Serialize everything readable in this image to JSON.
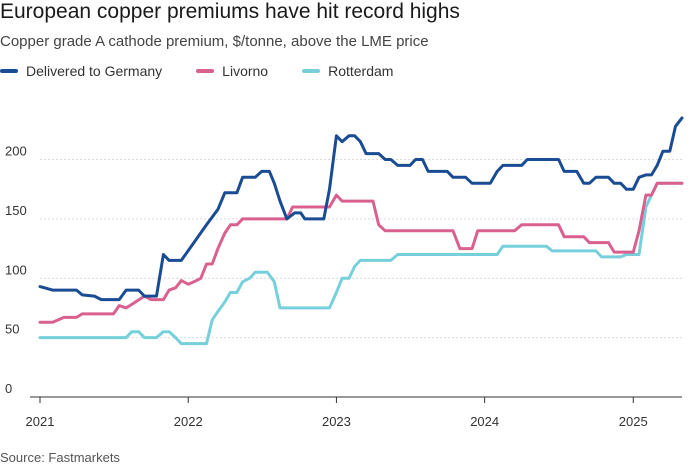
{
  "title": "European copper premiums have hit record highs",
  "subtitle": "Copper grade A cathode premium, $/tonne, above the LME price",
  "source": "Source: Fastmarkets",
  "colors": {
    "Delivered to Germany": "#1a4c93",
    "Livorno": "#d9608f",
    "Rotterdam": "#76d0dc",
    "grid": "#d7d9de",
    "axis": "#333333"
  },
  "chart_data": {
    "type": "line",
    "title": "European copper premiums have hit record highs",
    "subtitle": "Copper grade A cathode premium, $/tonne, above the LME price",
    "ylim": [
      0,
      240
    ],
    "yticks": [
      0,
      50,
      100,
      150,
      200
    ],
    "xlim": [
      "2021-01-01",
      "2025-05-01"
    ],
    "xticks": [
      "2021",
      "2022",
      "2023",
      "2024",
      "2025"
    ],
    "grid": true,
    "legend_position": "top-left",
    "series": [
      {
        "name": "Delivered to Germany",
        "points": [
          [
            "2021-01-01",
            93
          ],
          [
            "2021-02-01",
            90
          ],
          [
            "2021-04-01",
            90
          ],
          [
            "2021-04-15",
            86
          ],
          [
            "2021-05-15",
            85
          ],
          [
            "2021-06-01",
            82
          ],
          [
            "2021-07-15",
            82
          ],
          [
            "2021-08-01",
            90
          ],
          [
            "2021-09-01",
            90
          ],
          [
            "2021-09-15",
            85
          ],
          [
            "2021-10-15",
            85
          ],
          [
            "2021-11-01",
            120
          ],
          [
            "2021-11-15",
            115
          ],
          [
            "2021-12-15",
            115
          ],
          [
            "2022-01-15",
            130
          ],
          [
            "2022-02-15",
            145
          ],
          [
            "2022-03-15",
            158
          ],
          [
            "2022-04-01",
            172
          ],
          [
            "2022-05-01",
            172
          ],
          [
            "2022-05-15",
            185
          ],
          [
            "2022-06-15",
            185
          ],
          [
            "2022-07-01",
            190
          ],
          [
            "2022-07-20",
            190
          ],
          [
            "2022-08-01",
            180
          ],
          [
            "2022-08-15",
            165
          ],
          [
            "2022-09-01",
            150
          ],
          [
            "2022-09-20",
            155
          ],
          [
            "2022-10-05",
            155
          ],
          [
            "2022-10-15",
            150
          ],
          [
            "2022-12-01",
            150
          ],
          [
            "2022-12-15",
            175
          ],
          [
            "2023-01-01",
            220
          ],
          [
            "2023-01-15",
            215
          ],
          [
            "2023-02-01",
            220
          ],
          [
            "2023-02-15",
            220
          ],
          [
            "2023-03-01",
            215
          ],
          [
            "2023-03-15",
            205
          ],
          [
            "2023-04-15",
            205
          ],
          [
            "2023-05-01",
            200
          ],
          [
            "2023-05-15",
            200
          ],
          [
            "2023-06-01",
            195
          ],
          [
            "2023-07-01",
            195
          ],
          [
            "2023-07-15",
            200
          ],
          [
            "2023-08-01",
            200
          ],
          [
            "2023-08-15",
            190
          ],
          [
            "2023-09-01",
            190
          ],
          [
            "2023-10-01",
            190
          ],
          [
            "2023-10-15",
            185
          ],
          [
            "2023-11-15",
            185
          ],
          [
            "2023-12-01",
            180
          ],
          [
            "2024-01-15",
            180
          ],
          [
            "2024-02-01",
            190
          ],
          [
            "2024-02-15",
            195
          ],
          [
            "2024-04-01",
            195
          ],
          [
            "2024-04-15",
            200
          ],
          [
            "2024-07-01",
            200
          ],
          [
            "2024-07-15",
            190
          ],
          [
            "2024-08-15",
            190
          ],
          [
            "2024-09-01",
            180
          ],
          [
            "2024-09-15",
            180
          ],
          [
            "2024-10-01",
            185
          ],
          [
            "2024-11-01",
            185
          ],
          [
            "2024-11-15",
            180
          ],
          [
            "2024-12-01",
            180
          ],
          [
            "2024-12-15",
            175
          ],
          [
            "2025-01-01",
            175
          ],
          [
            "2025-01-15",
            185
          ],
          [
            "2025-02-01",
            187
          ],
          [
            "2025-02-15",
            187
          ],
          [
            "2025-03-01",
            195
          ],
          [
            "2025-03-15",
            207
          ],
          [
            "2025-04-01",
            207
          ],
          [
            "2025-04-15",
            228
          ],
          [
            "2025-05-01",
            235
          ]
        ]
      },
      {
        "name": "Livorno",
        "points": [
          [
            "2021-01-01",
            63
          ],
          [
            "2021-02-01",
            63
          ],
          [
            "2021-03-01",
            67
          ],
          [
            "2021-04-01",
            67
          ],
          [
            "2021-04-15",
            70
          ],
          [
            "2021-06-15",
            70
          ],
          [
            "2021-07-01",
            70
          ],
          [
            "2021-07-15",
            77
          ],
          [
            "2021-08-01",
            75
          ],
          [
            "2021-08-15",
            78
          ],
          [
            "2021-09-15",
            85
          ],
          [
            "2021-10-01",
            82
          ],
          [
            "2021-11-01",
            82
          ],
          [
            "2021-11-15",
            90
          ],
          [
            "2021-12-01",
            92
          ],
          [
            "2021-12-15",
            98
          ],
          [
            "2022-01-01",
            95
          ],
          [
            "2022-01-15",
            97
          ],
          [
            "2022-02-01",
            100
          ],
          [
            "2022-02-15",
            112
          ],
          [
            "2022-03-01",
            112
          ],
          [
            "2022-03-15",
            125
          ],
          [
            "2022-04-01",
            138
          ],
          [
            "2022-04-15",
            145
          ],
          [
            "2022-05-01",
            145
          ],
          [
            "2022-05-15",
            150
          ],
          [
            "2022-09-01",
            150
          ],
          [
            "2022-09-15",
            160
          ],
          [
            "2022-12-15",
            160
          ],
          [
            "2023-01-01",
            170
          ],
          [
            "2023-01-15",
            165
          ],
          [
            "2023-04-01",
            165
          ],
          [
            "2023-04-15",
            145
          ],
          [
            "2023-05-01",
            140
          ],
          [
            "2023-10-15",
            140
          ],
          [
            "2023-11-01",
            125
          ],
          [
            "2023-12-01",
            125
          ],
          [
            "2023-12-15",
            140
          ],
          [
            "2024-03-15",
            140
          ],
          [
            "2024-04-01",
            145
          ],
          [
            "2024-07-01",
            145
          ],
          [
            "2024-07-15",
            135
          ],
          [
            "2024-09-01",
            135
          ],
          [
            "2024-09-15",
            130
          ],
          [
            "2024-11-01",
            130
          ],
          [
            "2024-11-15",
            122
          ],
          [
            "2025-01-01",
            122
          ],
          [
            "2025-01-15",
            140
          ],
          [
            "2025-02-01",
            170
          ],
          [
            "2025-02-15",
            170
          ],
          [
            "2025-03-01",
            180
          ],
          [
            "2025-05-01",
            180
          ]
        ]
      },
      {
        "name": "Rotterdam",
        "points": [
          [
            "2021-01-01",
            50
          ],
          [
            "2021-08-01",
            50
          ],
          [
            "2021-08-15",
            55
          ],
          [
            "2021-09-01",
            55
          ],
          [
            "2021-09-15",
            50
          ],
          [
            "2021-10-15",
            50
          ],
          [
            "2021-11-01",
            55
          ],
          [
            "2021-11-15",
            55
          ],
          [
            "2021-12-01",
            50
          ],
          [
            "2021-12-15",
            45
          ],
          [
            "2022-02-15",
            45
          ],
          [
            "2022-03-01",
            65
          ],
          [
            "2022-03-15",
            72
          ],
          [
            "2022-04-01",
            80
          ],
          [
            "2022-04-15",
            88
          ],
          [
            "2022-05-01",
            88
          ],
          [
            "2022-05-15",
            97
          ],
          [
            "2022-06-01",
            100
          ],
          [
            "2022-06-15",
            105
          ],
          [
            "2022-07-15",
            105
          ],
          [
            "2022-08-01",
            97
          ],
          [
            "2022-08-15",
            75
          ],
          [
            "2022-11-01",
            75
          ],
          [
            "2022-11-15",
            75
          ],
          [
            "2022-12-15",
            75
          ],
          [
            "2023-01-01",
            88
          ],
          [
            "2023-01-15",
            100
          ],
          [
            "2023-02-01",
            100
          ],
          [
            "2023-02-15",
            110
          ],
          [
            "2023-03-01",
            115
          ],
          [
            "2023-05-15",
            115
          ],
          [
            "2023-06-01",
            120
          ],
          [
            "2023-12-15",
            120
          ],
          [
            "2024-01-01",
            120
          ],
          [
            "2024-02-01",
            120
          ],
          [
            "2024-02-15",
            127
          ],
          [
            "2024-06-01",
            127
          ],
          [
            "2024-06-15",
            123
          ],
          [
            "2024-10-01",
            123
          ],
          [
            "2024-10-15",
            118
          ],
          [
            "2024-12-01",
            118
          ],
          [
            "2024-12-15",
            120
          ],
          [
            "2025-01-15",
            120
          ],
          [
            "2025-02-01",
            160
          ],
          [
            "2025-02-15",
            170
          ],
          [
            "2025-03-01",
            180
          ],
          [
            "2025-05-01",
            180
          ]
        ]
      }
    ]
  }
}
